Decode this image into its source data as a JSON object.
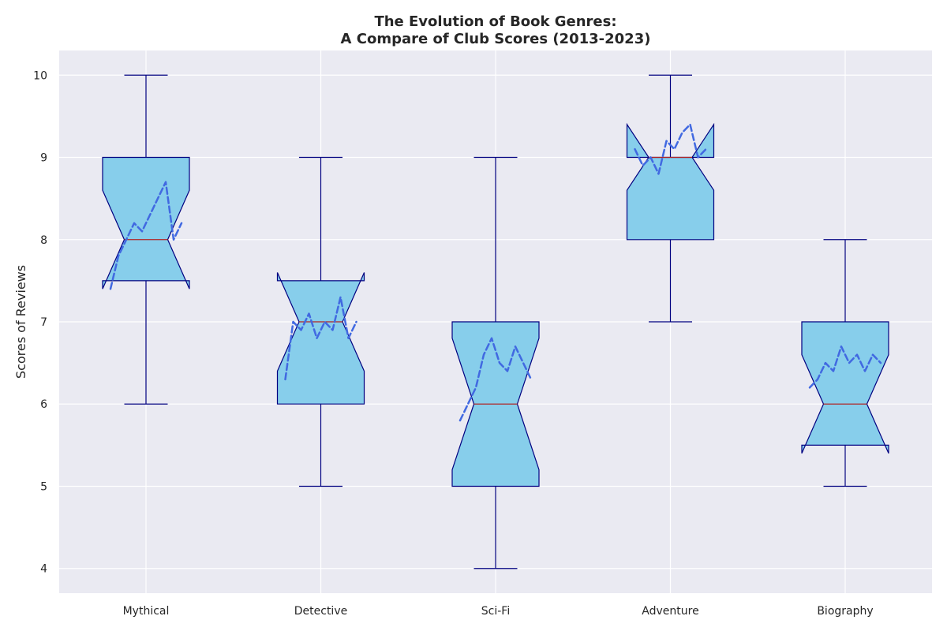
{
  "chart_data": {
    "type": "box",
    "title_line1": "The Evolution of Book Genres:",
    "title_line2": "A Compare of Club Scores (2013-2023)",
    "xlabel": "",
    "ylabel": "Scores of Reviews",
    "ylim": [
      3.7,
      10.3
    ],
    "yticks": [
      4,
      5,
      6,
      7,
      8,
      9,
      10
    ],
    "grid": true,
    "notched": true,
    "colors": {
      "background": "#eaeaf2",
      "grid": "#ffffff",
      "box_fill": "#87ceeb",
      "box_edge": "#000080",
      "median": "#b22222",
      "trend_line": "#4169e1",
      "text": "#262626"
    },
    "categories": [
      "Mythical",
      "Detective",
      "Sci-Fi",
      "Adventure",
      "Biography"
    ],
    "boxes": [
      {
        "whisker_low": 6,
        "q1": 7.5,
        "median": 8,
        "q3": 9,
        "whisker_high": 10,
        "notch_low": 7.4,
        "notch_high": 8.6
      },
      {
        "whisker_low": 5,
        "q1": 6,
        "median": 7,
        "q3": 7.5,
        "whisker_high": 9,
        "notch_low": 6.4,
        "notch_high": 7.6
      },
      {
        "whisker_low": 4,
        "q1": 5,
        "median": 6,
        "q3": 7,
        "whisker_high": 9,
        "notch_low": 5.2,
        "notch_high": 6.8
      },
      {
        "whisker_low": 7,
        "q1": 8,
        "median": 9,
        "q3": 9,
        "whisker_high": 10,
        "notch_low": 8.6,
        "notch_high": 9.4
      },
      {
        "whisker_low": 5,
        "q1": 5.5,
        "median": 6,
        "q3": 7,
        "whisker_high": 8,
        "notch_low": 5.4,
        "notch_high": 6.6
      }
    ],
    "trend_lines": [
      [
        7.4,
        7.8,
        8.0,
        8.2,
        8.1,
        8.3,
        8.5,
        8.7,
        8.0,
        8.2
      ],
      [
        6.3,
        7.0,
        6.9,
        7.1,
        6.8,
        7.0,
        6.9,
        7.3,
        6.8,
        7.0
      ],
      [
        5.8,
        6.0,
        6.2,
        6.6,
        6.8,
        6.5,
        6.4,
        6.7,
        6.5,
        6.3
      ],
      [
        9.1,
        8.9,
        9.0,
        8.8,
        9.2,
        9.1,
        9.3,
        9.4,
        9.0,
        9.1
      ],
      [
        6.2,
        6.3,
        6.5,
        6.4,
        6.7,
        6.5,
        6.6,
        6.4,
        6.6,
        6.5
      ]
    ]
  }
}
